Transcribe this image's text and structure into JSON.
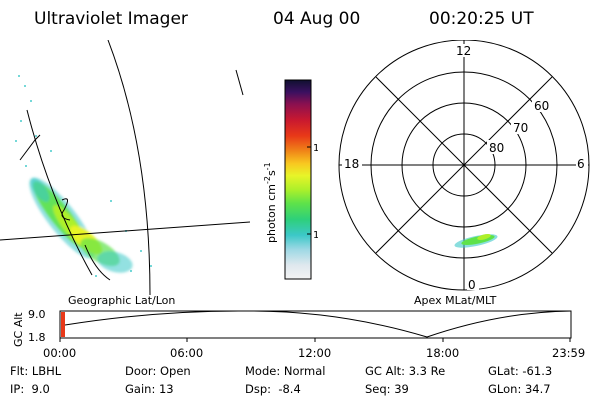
{
  "header": {
    "instrument": "Ultraviolet Imager",
    "date": "04 Aug 00",
    "time": "00:20:25 UT"
  },
  "left_panel": {
    "caption": "Geographic Lat/Lon"
  },
  "colorbar": {
    "unit": "photon cm",
    "unit_exp1": "-2",
    "unit_s": "s",
    "unit_exp2": "-1",
    "ticks": [
      "100",
      "10"
    ],
    "scale": "log",
    "colors": [
      "#f4f4f4",
      "#dfe8ee",
      "#9cd8e4",
      "#3cc8c8",
      "#2ed07a",
      "#5ee24a",
      "#aef02a",
      "#e8f428",
      "#f8c820",
      "#f08818",
      "#e83818",
      "#c81830",
      "#8a1050",
      "#3a1060",
      "#101030"
    ]
  },
  "polar": {
    "caption": "Apex MLat/MLT",
    "mlt_labels": [
      "12",
      "18",
      "6",
      "0"
    ],
    "lat_labels": [
      "60",
      "70",
      "80"
    ]
  },
  "altitude_plot": {
    "ylabel": "GC Alt",
    "yticks": [
      "9.0",
      "1.8"
    ],
    "xticks": [
      "00:00",
      "06:00",
      "12:00",
      "18:00",
      "23:59"
    ]
  },
  "footer": [
    [
      "Flt: LBHL",
      "Door: Open",
      "Mode: Normal",
      "GC Alt: 3.3 Re",
      "GLat: -61.3"
    ],
    [
      "IP:  9.0",
      "Gain: 13",
      "Dsp:  -8.4",
      "Seq: 39",
      "GLon: 34.7"
    ]
  ]
}
